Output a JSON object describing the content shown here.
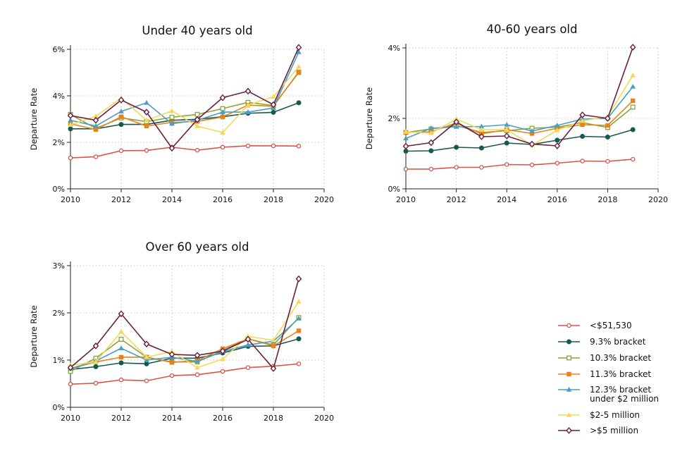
{
  "chart_data": [
    {
      "type": "line",
      "title": "Under 40 years old",
      "ylabel": "Departure Rate",
      "xlabel": "",
      "xlim": [
        2010,
        2020
      ],
      "ylim": [
        0,
        6
      ],
      "y_unit": "%",
      "x_ticks": [
        "2010",
        "2012",
        "2014",
        "2016",
        "2018",
        "2020"
      ],
      "y_ticks": [
        "0%",
        "2%",
        "4%",
        "6%"
      ],
      "grid": true,
      "x": [
        2010,
        2011,
        2012,
        2013,
        2014,
        2015,
        2016,
        2017,
        2018,
        2019
      ],
      "series": [
        {
          "name": "<$51,530",
          "values": [
            1.33,
            1.38,
            1.64,
            1.65,
            1.79,
            1.66,
            1.79,
            1.85,
            1.85,
            1.84
          ]
        },
        {
          "name": "9.3% bracket",
          "values": [
            2.58,
            2.58,
            2.77,
            2.77,
            2.95,
            2.99,
            3.1,
            3.25,
            3.29,
            3.7
          ]
        },
        {
          "name": "10.3% bracket",
          "values": [
            3.2,
            2.6,
            3.05,
            2.89,
            3.08,
            3.2,
            3.45,
            3.72,
            3.58,
            5.0
          ]
        },
        {
          "name": "11.3% bracket",
          "values": [
            2.8,
            2.55,
            3.1,
            2.7,
            2.86,
            2.9,
            3.09,
            3.6,
            3.55,
            5.03
          ]
        },
        {
          "name": "12.3% bracket under $2 million",
          "values": [
            2.95,
            2.7,
            3.33,
            3.7,
            2.8,
            2.95,
            3.3,
            3.3,
            3.48,
            5.88
          ]
        },
        {
          "name": "$2-5 million",
          "values": [
            2.75,
            3.12,
            3.9,
            2.95,
            3.35,
            2.7,
            2.42,
            3.6,
            3.96,
            5.25
          ]
        },
        {
          "name": ">$5 million",
          "values": [
            3.15,
            2.95,
            3.82,
            3.3,
            1.75,
            2.98,
            3.92,
            4.2,
            3.62,
            6.08
          ]
        }
      ]
    },
    {
      "type": "line",
      "title": "40-60 years old",
      "ylabel": "Departure Rate",
      "xlabel": "",
      "xlim": [
        2010,
        2020
      ],
      "ylim": [
        0,
        4
      ],
      "y_unit": "%",
      "x_ticks": [
        "2010",
        "2012",
        "2014",
        "2016",
        "2018",
        "2020"
      ],
      "y_ticks": [
        "0%",
        "2%",
        "4%"
      ],
      "grid": true,
      "x": [
        2010,
        2011,
        2012,
        2013,
        2014,
        2015,
        2016,
        2017,
        2018,
        2019
      ],
      "series": [
        {
          "name": "<$51,530",
          "values": [
            0.56,
            0.56,
            0.61,
            0.61,
            0.69,
            0.68,
            0.73,
            0.79,
            0.78,
            0.84
          ]
        },
        {
          "name": "9.3% bracket",
          "values": [
            1.07,
            1.08,
            1.18,
            1.16,
            1.3,
            1.26,
            1.38,
            1.49,
            1.47,
            1.68
          ]
        },
        {
          "name": "10.3% bracket",
          "values": [
            1.6,
            1.7,
            1.8,
            1.6,
            1.65,
            1.72,
            1.75,
            1.88,
            1.74,
            2.32
          ]
        },
        {
          "name": "11.3% bracket",
          "values": [
            1.6,
            1.62,
            1.87,
            1.56,
            1.68,
            1.57,
            1.72,
            1.82,
            1.8,
            2.5
          ]
        },
        {
          "name": "12.3% bracket under $2 million",
          "values": [
            1.43,
            1.72,
            1.76,
            1.77,
            1.82,
            1.64,
            1.8,
            1.98,
            2.0,
            2.9
          ]
        },
        {
          "name": "$2-5 million",
          "values": [
            1.62,
            1.58,
            1.98,
            1.68,
            1.68,
            1.24,
            1.66,
            1.93,
            2.05,
            3.22
          ]
        },
        {
          "name": ">$5 million",
          "values": [
            1.21,
            1.31,
            1.9,
            1.48,
            1.5,
            1.27,
            1.22,
            2.1,
            2.0,
            4.02
          ]
        }
      ]
    },
    {
      "type": "line",
      "title": "Over 60 years old",
      "ylabel": "Departure Rate",
      "xlabel": "",
      "xlim": [
        2010,
        2020
      ],
      "ylim": [
        0,
        3
      ],
      "y_unit": "%",
      "x_ticks": [
        "2010",
        "2012",
        "2014",
        "2016",
        "2018",
        "2020"
      ],
      "y_ticks": [
        "0%",
        "1%",
        "2%",
        "3%"
      ],
      "grid": true,
      "x": [
        2010,
        2011,
        2012,
        2013,
        2014,
        2015,
        2016,
        2017,
        2018,
        2019
      ],
      "series": [
        {
          "name": "<$51,530",
          "values": [
            0.49,
            0.51,
            0.58,
            0.56,
            0.67,
            0.69,
            0.76,
            0.84,
            0.87,
            0.92
          ]
        },
        {
          "name": "9.3% bracket",
          "values": [
            0.8,
            0.86,
            0.94,
            0.92,
            1.04,
            1.04,
            1.15,
            1.29,
            1.3,
            1.45
          ]
        },
        {
          "name": "10.3% bracket",
          "values": [
            0.76,
            1.04,
            1.44,
            1.06,
            0.96,
            0.96,
            1.2,
            1.45,
            1.32,
            1.9
          ]
        },
        {
          "name": "11.3% bracket",
          "values": [
            0.82,
            0.96,
            1.06,
            1.06,
            0.95,
            0.99,
            1.24,
            1.45,
            1.3,
            1.62
          ]
        },
        {
          "name": "12.3% bracket under $2 million",
          "values": [
            0.82,
            0.98,
            1.25,
            1.0,
            1.06,
            0.97,
            1.18,
            1.32,
            1.4,
            1.88
          ]
        },
        {
          "name": "$2-5 million",
          "values": [
            0.89,
            0.96,
            1.6,
            1.06,
            1.18,
            0.84,
            1.02,
            1.5,
            1.42,
            2.24
          ]
        },
        {
          "name": ">$5 million",
          "values": [
            0.84,
            1.3,
            1.98,
            1.34,
            1.12,
            1.1,
            1.19,
            1.44,
            0.82,
            2.72
          ]
        }
      ]
    }
  ],
  "legend": {
    "placement": "bottom-right",
    "items": [
      {
        "label": "<$51,530",
        "color": "#d9534a",
        "marker": "circle-hollow"
      },
      {
        "label": "9.3% bracket",
        "color": "#17594f",
        "marker": "circle-filled"
      },
      {
        "label": "10.3% bracket",
        "color": "#88a43d",
        "marker": "square-hollow"
      },
      {
        "label": "11.3% bracket",
        "color": "#e8821a",
        "marker": "square-filled"
      },
      {
        "label": "12.3% bracket",
        "label2": "under $2 million",
        "color": "#4a9ec5",
        "marker": "triangle-filled"
      },
      {
        "label": "$2-5 million",
        "color": "#f3d95a",
        "marker": "triangle-filled"
      },
      {
        "label": ">$5 million",
        "color": "#6b1e3e",
        "marker": "diamond-hollow"
      }
    ]
  }
}
